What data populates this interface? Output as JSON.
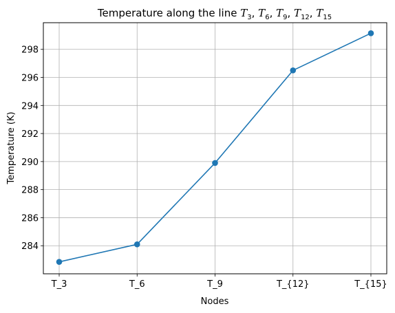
{
  "chart_data": {
    "type": "line",
    "title": {
      "prefix": "Temperature along the line ",
      "terms": [
        {
          "base": "T",
          "sub": "3"
        },
        {
          "base": "T",
          "sub": "6"
        },
        {
          "base": "T",
          "sub": "9"
        },
        {
          "base": "T",
          "sub": "12"
        },
        {
          "base": "T",
          "sub": "15"
        }
      ],
      "separator": ", "
    },
    "xlabel": "Nodes",
    "ylabel": "Temperature (K)",
    "categories": [
      "T_3",
      "T_6",
      "T_9",
      "T_{12}",
      "T_{15}"
    ],
    "series": [
      {
        "values": [
          282.85,
          284.1,
          289.9,
          296.5,
          299.15
        ],
        "color": "#1f77b4",
        "marker": "circle"
      }
    ],
    "ylim": [
      282.0,
      299.9
    ],
    "yticks": [
      284,
      286,
      288,
      290,
      292,
      294,
      296,
      298
    ],
    "grid": true,
    "legend": false
  }
}
